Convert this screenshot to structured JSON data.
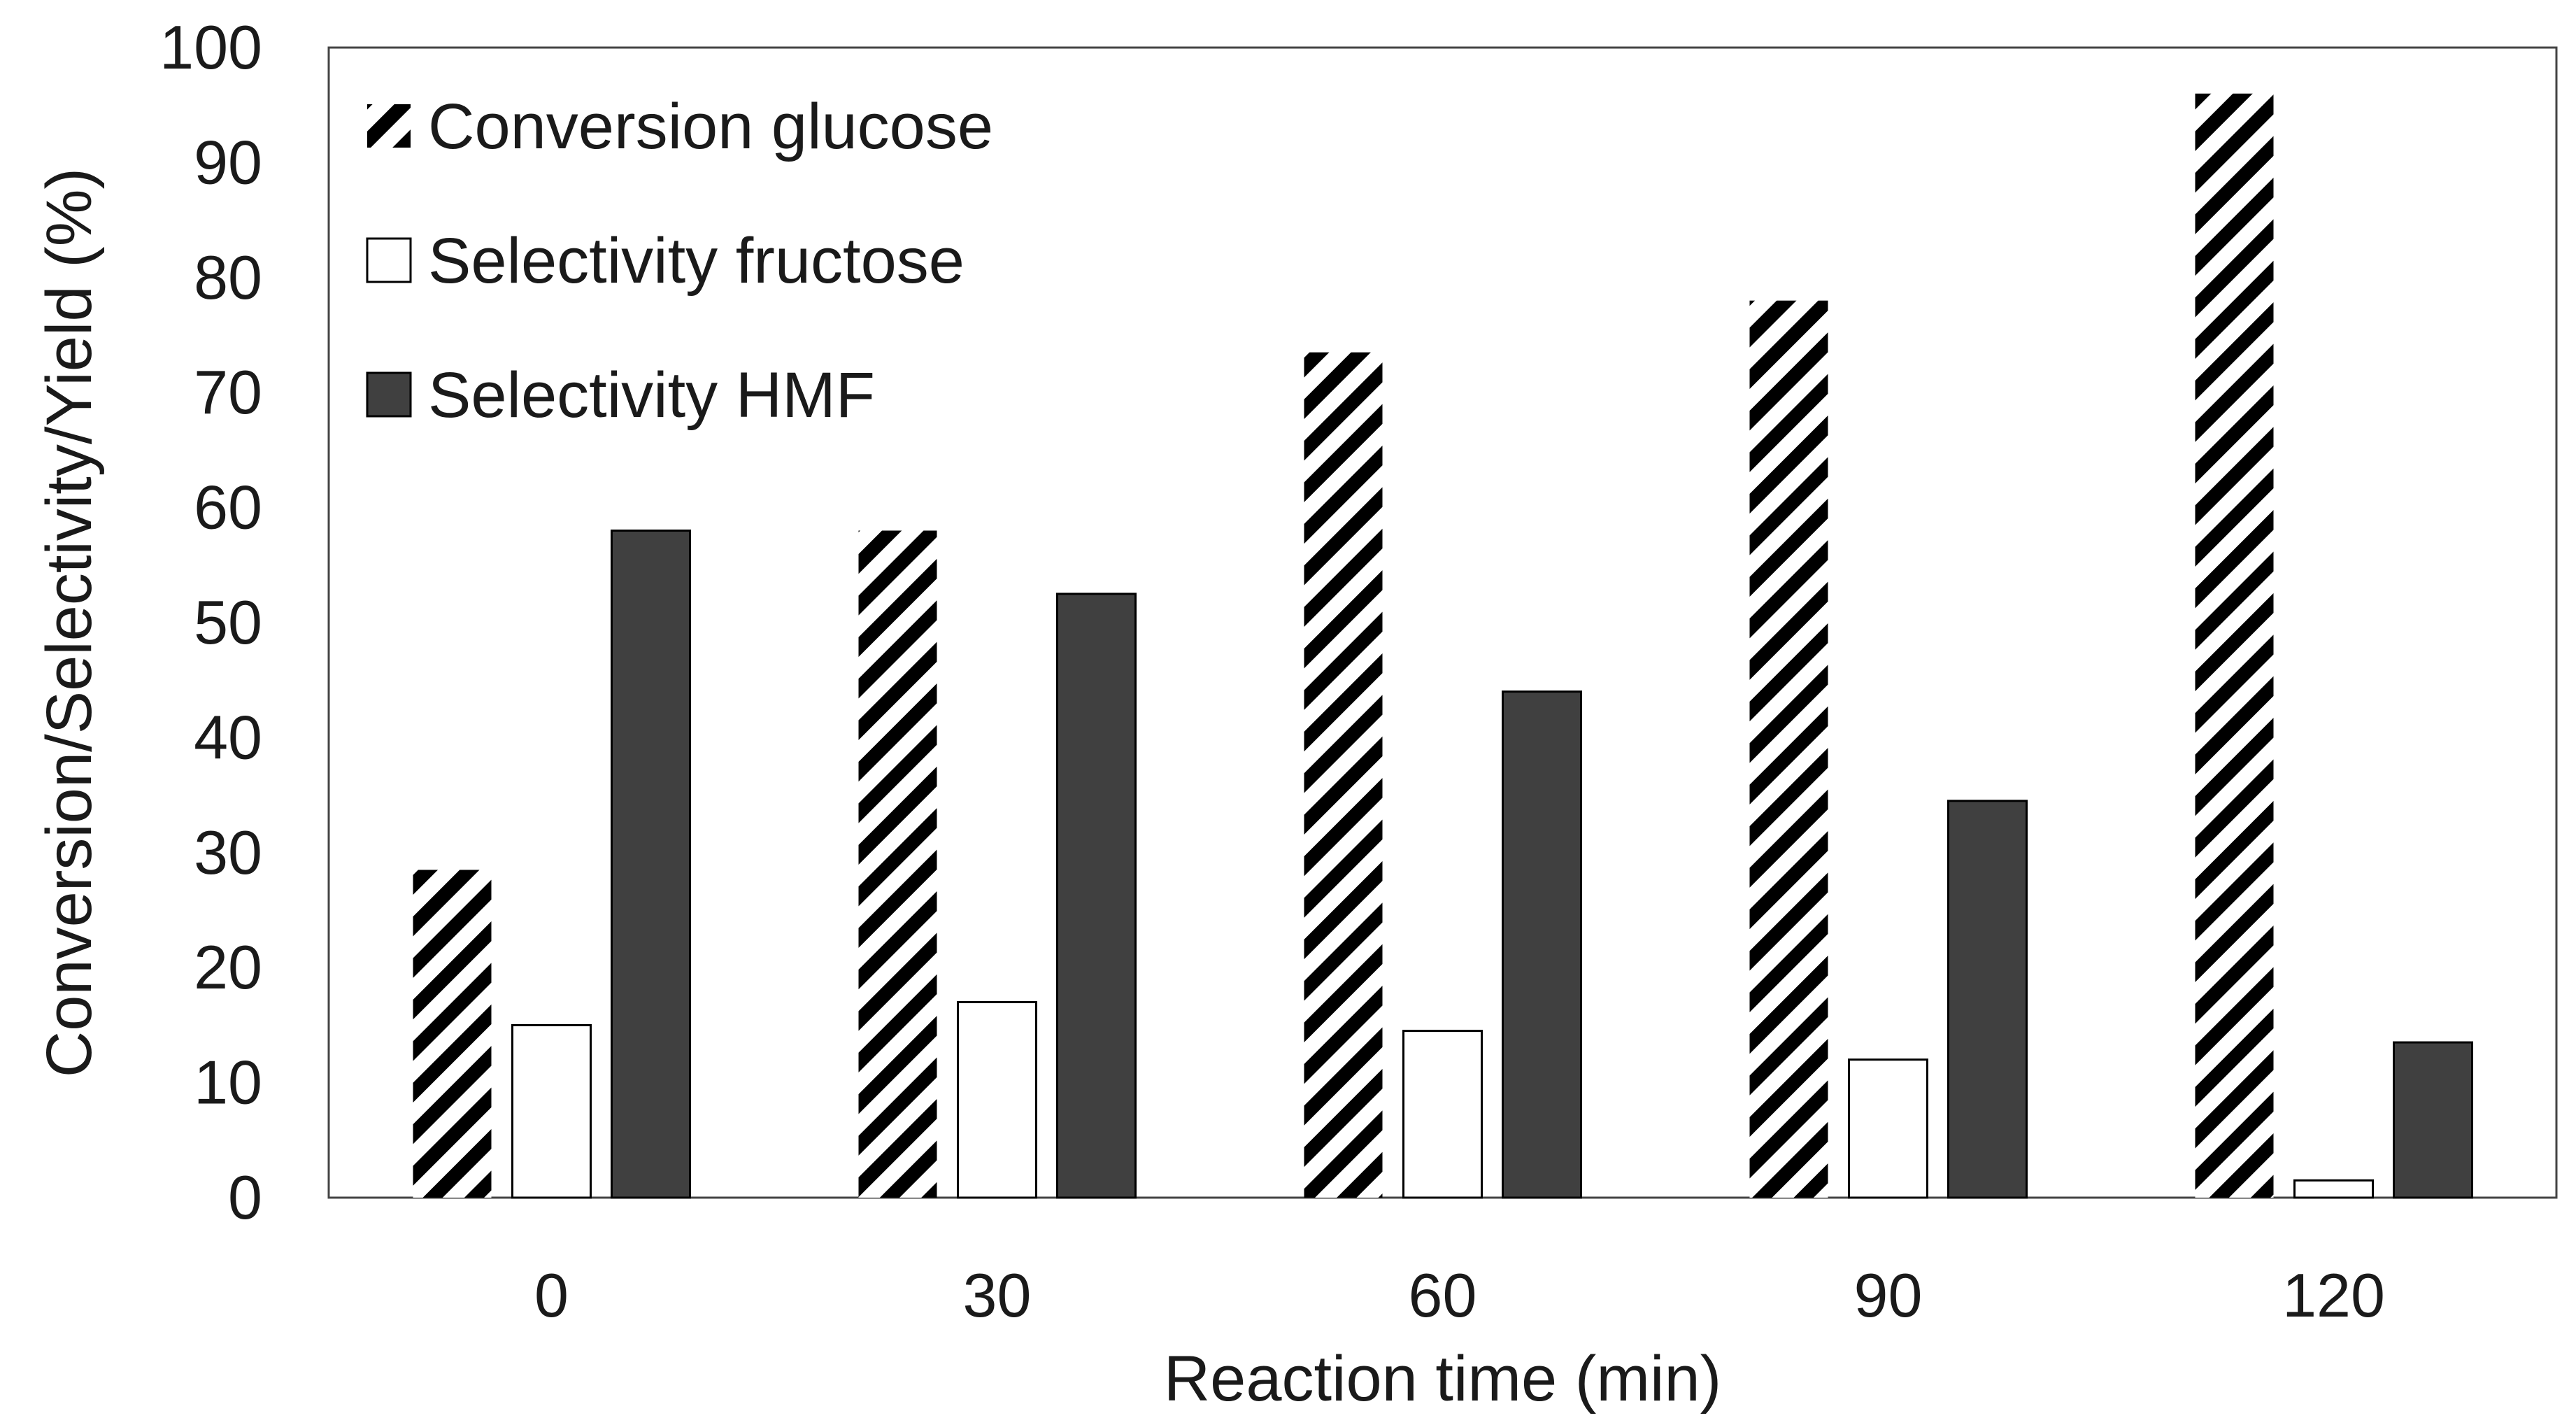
{
  "chart_data": {
    "type": "bar",
    "title": "",
    "xlabel": "Reaction time (min)",
    "ylabel": "Conversion/Selectivity/Yield (%)",
    "categories": [
      "0",
      "30",
      "60",
      "90",
      "120"
    ],
    "ylim": [
      0,
      100
    ],
    "yticks": [
      "0",
      "10",
      "20",
      "30",
      "40",
      "50",
      "60",
      "70",
      "80",
      "90",
      "100"
    ],
    "grid": false,
    "legend_position": "top-left",
    "series": [
      {
        "name": "Conversion glucose",
        "values": [
          28.5,
          58,
          73.5,
          78,
          96
        ],
        "fill": "hatched",
        "color": "#000000"
      },
      {
        "name": "Selectivity fructose",
        "values": [
          15,
          17,
          14.5,
          12,
          1.5
        ],
        "fill": "solid",
        "color": "#ffffff"
      },
      {
        "name": "Selectivity HMF",
        "values": [
          58,
          52.5,
          44,
          34.5,
          13.5
        ],
        "fill": "solid",
        "color": "#404040"
      }
    ]
  }
}
